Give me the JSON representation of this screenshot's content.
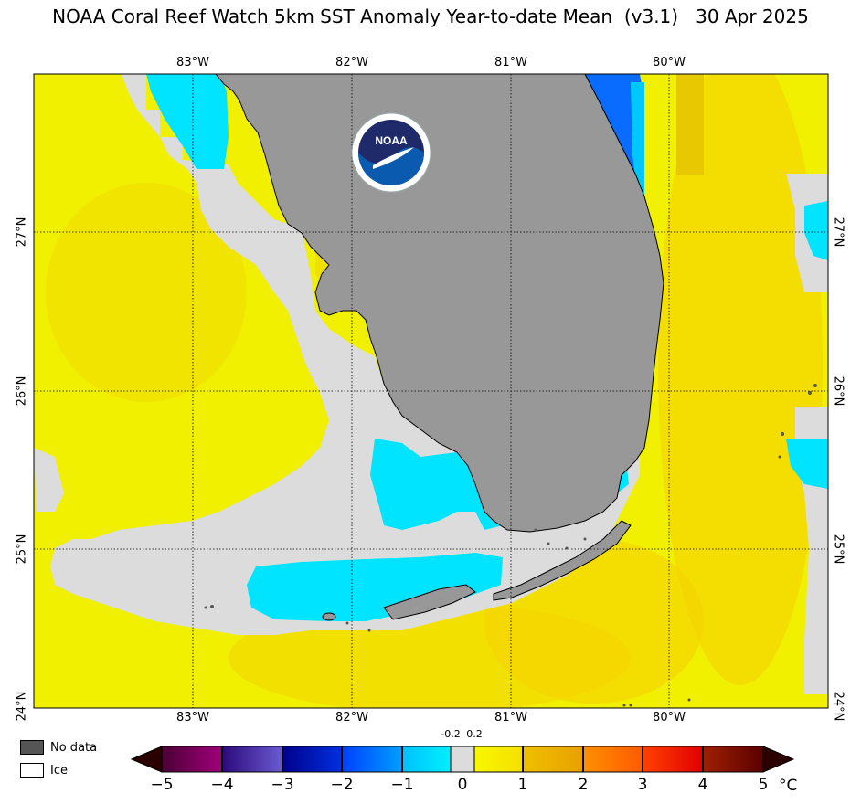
{
  "title": "NOAA Coral Reef Watch 5km SST Anomaly Year-to-date Mean  (v3.1)   30 Apr 2025",
  "logo": {
    "name": "noaa-logo",
    "text": "NOAA"
  },
  "axes": {
    "longitude_labels": [
      "83°W",
      "82°W",
      "81°W",
      "80°W"
    ],
    "latitude_labels": [
      "27°N",
      "26°N",
      "25°N",
      "24°N"
    ]
  },
  "legend": {
    "no_data": {
      "label": "No data",
      "color": "#555555"
    },
    "ice": {
      "label": "Ice",
      "color": "#ffffff"
    }
  },
  "colorbar": {
    "ticks": [
      "−5",
      "−4",
      "−3",
      "−2",
      "−1",
      "0",
      "1",
      "2",
      "3",
      "4",
      "5"
    ],
    "small_labels": [
      "-0.2",
      "0.2"
    ],
    "unit": "°C",
    "range": [
      -5,
      5
    ]
  },
  "colors": {
    "land": "#989898",
    "neutral_water": "#dcdcdc",
    "yellow": "#f0f000",
    "light_orange": "#f5d800",
    "cyan": "#00e4ff",
    "blue": "#0060ff"
  }
}
